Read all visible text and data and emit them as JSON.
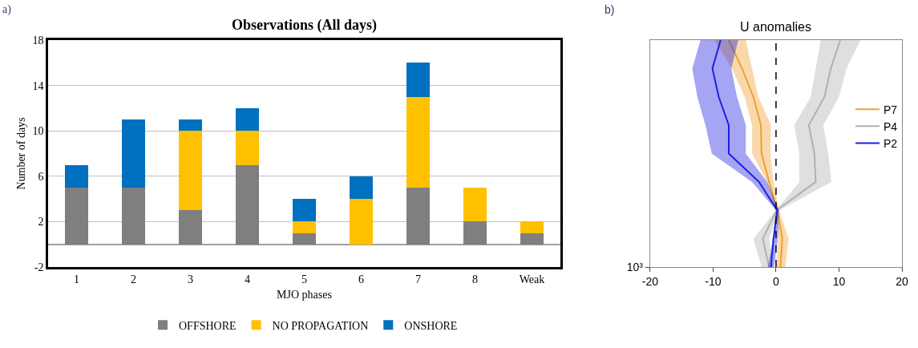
{
  "chart_data": [
    {
      "type": "bar",
      "title": "Observations (All days)",
      "xlabel": "MJO phases",
      "ylabel": "Number of days",
      "annotations": [
        "a)"
      ],
      "stacked": true,
      "categories": [
        "1",
        "2",
        "3",
        "4",
        "5",
        "6",
        "7",
        "8",
        "Weak"
      ],
      "series": [
        {
          "name": "OFFSHORE",
          "color": "#7f7f7f",
          "values": [
            5,
            5,
            3,
            7,
            1,
            0,
            5,
            2,
            1
          ]
        },
        {
          "name": "NO PROPAGATION",
          "color": "#ffc000",
          "values": [
            0,
            0,
            7,
            3,
            1,
            4,
            8,
            3,
            1
          ]
        },
        {
          "name": "ONSHORE",
          "color": "#0070c0",
          "values": [
            2,
            6,
            1,
            2,
            2,
            2,
            3,
            0,
            0
          ]
        }
      ],
      "ylim": [
        -2,
        18
      ],
      "yticks": [
        -2,
        2,
        6,
        10,
        14,
        18
      ],
      "grid": "y",
      "legend": "bottom"
    },
    {
      "type": "line",
      "title": "U anomalies",
      "annotations": [
        "b)"
      ],
      "orientation": "horizontal",
      "categories": [
        null,
        null,
        null,
        null,
        null,
        null,
        null,
        null,
        "10³"
      ],
      "series": [
        {
          "name": "P7",
          "color": "#f0a030",
          "values": [
            -7.5,
            -5.4,
            -3.6,
            -2.4,
            -2.3,
            -1.1,
            0.2,
            1.0,
            0.7
          ],
          "lower": [
            -9.8,
            -7.0,
            -5.0,
            -3.8,
            -3.8,
            -1.4,
            0,
            0.4,
            0
          ],
          "upper": [
            -4.8,
            -3.8,
            -2.8,
            -0.8,
            -0.9,
            -0.4,
            0.5,
            2.0,
            1.5
          ]
        },
        {
          "name": "P4",
          "color": "#b0b0b0",
          "values": [
            10.2,
            8.7,
            7.7,
            5.2,
            6.1,
            6.3,
            0.1,
            -2.1,
            -1.1
          ],
          "lower": [
            7.1,
            6.3,
            5.5,
            2.9,
            3.7,
            3.7,
            0,
            -3.6,
            -2.3
          ],
          "upper": [
            13.4,
            11.2,
            10.0,
            7.5,
            8.3,
            8.8,
            0.5,
            -1.1,
            -0.5
          ]
        },
        {
          "name": "P2",
          "color": "#1f1fe0",
          "values": [
            -8.8,
            -10.1,
            -9.1,
            -7.5,
            -7.5,
            -2.7,
            0.2,
            -0.4,
            -0.8
          ],
          "lower": [
            -12.0,
            -13.3,
            -12.5,
            -11.2,
            -10.2,
            -3.8,
            0,
            -0.5,
            -1.3
          ],
          "upper": [
            -6.0,
            -7.1,
            -6.2,
            -4.8,
            -4.8,
            -1.4,
            0.5,
            0.3,
            -0.3
          ]
        }
      ],
      "xlim": [
        -20,
        20
      ],
      "xticks": [
        -20,
        -10,
        0,
        10,
        20
      ],
      "ref_lines": [
        {
          "axis": "x",
          "value": 0,
          "color": "#000000",
          "line_style": "dashed"
        }
      ],
      "grid": false,
      "legend": "right",
      "marker": "none",
      "line_style": "solid"
    }
  ]
}
